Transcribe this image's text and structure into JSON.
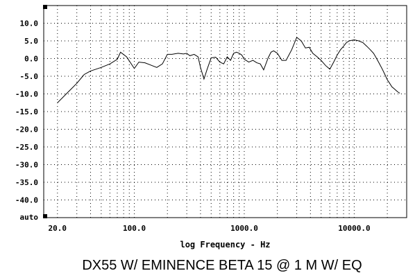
{
  "chart_data": {
    "type": "line",
    "title": "DX55 W/ EMINENCE BETA 15 @ 1 M W/ EQ",
    "xlabel": "log Frequency - Hz",
    "ylabel": "",
    "x_scale": "log",
    "xlim": [
      15,
      30000
    ],
    "ylim": [
      -45,
      15
    ],
    "grid": true,
    "x_tick_labels": [
      {
        "value": 20,
        "label": "20.0"
      },
      {
        "value": 100,
        "label": "100.0"
      },
      {
        "value": 1000,
        "label": "1000.0"
      },
      {
        "value": 10000,
        "label": "10000.0"
      }
    ],
    "y_tick_labels": [
      {
        "value": 10,
        "label": "10.0"
      },
      {
        "value": 5,
        "label": "5.0"
      },
      {
        "value": 0,
        "label": "0.0"
      },
      {
        "value": -5,
        "label": "-5.0"
      },
      {
        "value": -10,
        "label": "-10.0"
      },
      {
        "value": -15,
        "label": "-15.0"
      },
      {
        "value": -20,
        "label": "-20.0"
      },
      {
        "value": -25,
        "label": "-25.0"
      },
      {
        "value": -30,
        "label": "-30.0"
      },
      {
        "value": -35,
        "label": "-35.0"
      },
      {
        "value": -40,
        "label": "-40.0"
      }
    ],
    "y_extra_label": "auto",
    "series": [
      {
        "color": "#000000",
        "x": [
          20,
          25,
          30,
          35,
          40,
          50,
          60,
          70,
          75,
          85,
          100,
          110,
          125,
          140,
          160,
          180,
          200,
          220,
          250,
          280,
          300,
          320,
          350,
          380,
          400,
          430,
          460,
          500,
          550,
          600,
          650,
          700,
          750,
          800,
          850,
          900,
          950,
          1000,
          1100,
          1200,
          1300,
          1400,
          1500,
          1650,
          1750,
          1850,
          2000,
          2200,
          2400,
          2700,
          3000,
          3300,
          3600,
          3900,
          4200,
          4600,
          5000,
          5500,
          6000,
          6500,
          7000,
          7500,
          8000,
          8500,
          9000,
          10000,
          11000,
          12000,
          13000,
          14000,
          15000,
          16000,
          17000,
          18000,
          19000,
          20000,
          21000,
          22000,
          23000,
          24000,
          25000,
          26000
        ],
        "y": [
          -12.5,
          -9.5,
          -7,
          -4.5,
          -3.5,
          -2.5,
          -1.5,
          -0.2,
          1.8,
          0.5,
          -2.8,
          -1.0,
          -1.2,
          -1.8,
          -2.5,
          -1.5,
          1.2,
          1.2,
          1.5,
          1.3,
          1.5,
          0.8,
          1.2,
          0.5,
          -2.5,
          -5.8,
          -3.0,
          0.2,
          0.4,
          -1.0,
          -1.5,
          0.5,
          -0.5,
          1.5,
          1.8,
          1.5,
          1.0,
          -0.2,
          -1.0,
          -0.5,
          -1.2,
          -1.5,
          -3.2,
          0.2,
          1.8,
          2.2,
          1.5,
          -0.5,
          -0.5,
          2.5,
          6.0,
          5.0,
          3.0,
          3.2,
          1.5,
          0.5,
          -0.5,
          -2.0,
          -3.0,
          -1.0,
          1.0,
          2.5,
          3.5,
          4.5,
          5.0,
          5.3,
          5.0,
          4.5,
          3.5,
          2.5,
          1.5,
          0.0,
          -1.5,
          -3.0,
          -4.5,
          -6.0,
          -7.0,
          -8.0,
          -8.5,
          -9.0,
          -9.5,
          -9.8
        ]
      }
    ]
  }
}
